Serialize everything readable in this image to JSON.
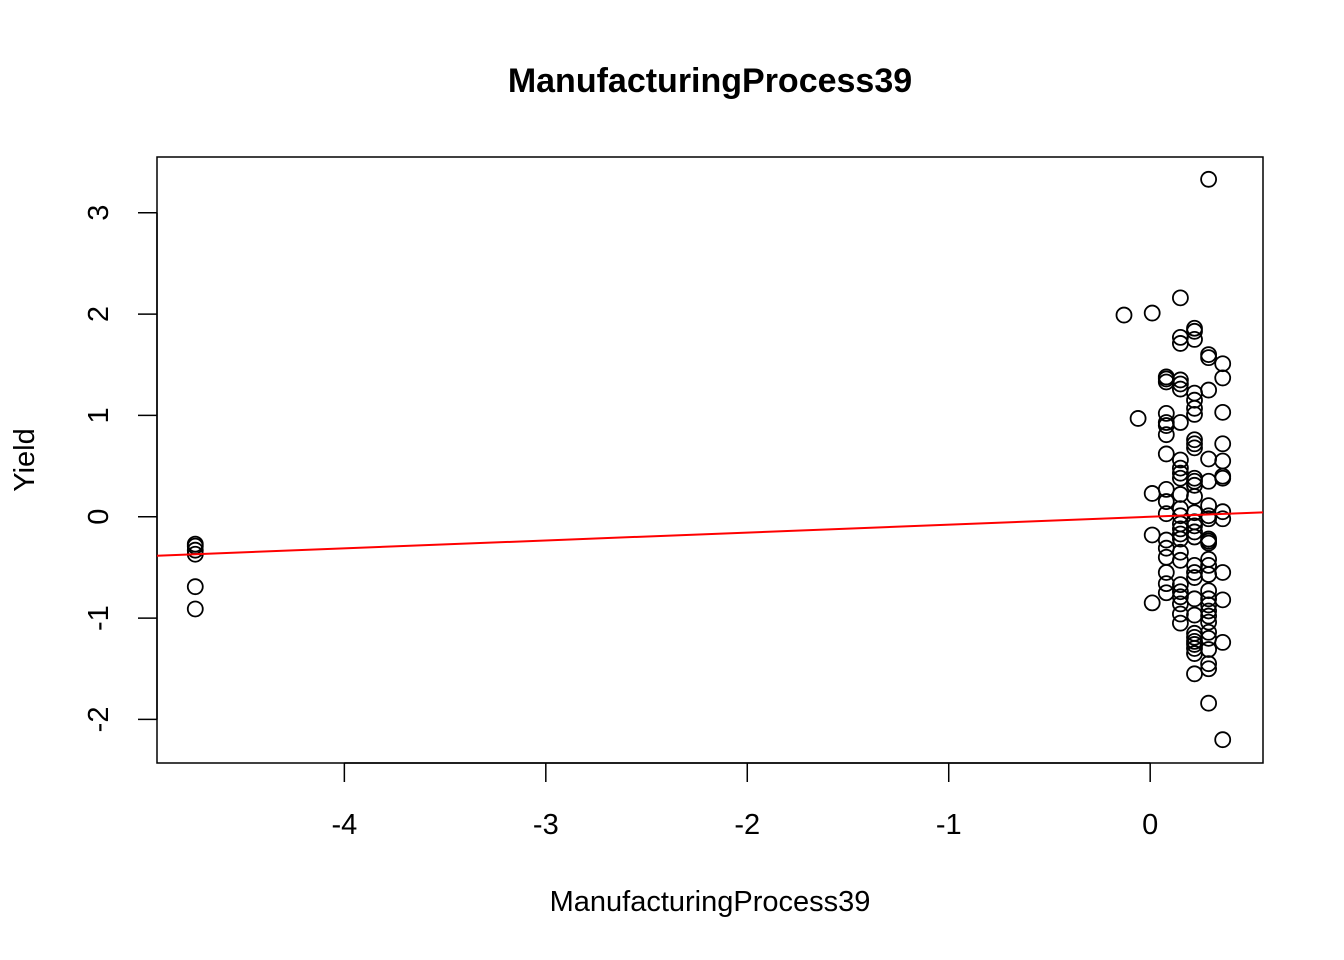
{
  "chart_data": {
    "type": "scatter",
    "title": "ManufacturingProcess39",
    "xlabel": "ManufacturingProcess39",
    "ylabel": "Yield",
    "xlim": [
      -4.93,
      0.56
    ],
    "ylim": [
      -2.43,
      3.55
    ],
    "xticks": [
      -4,
      -3,
      -2,
      -1,
      0
    ],
    "yticks": [
      -2,
      -1,
      0,
      1,
      2,
      3
    ],
    "xtick_labels": [
      "-4",
      "-3",
      "-2",
      "-1",
      "0"
    ],
    "ytick_labels": [
      "-2",
      "-1",
      "0",
      "1",
      "2",
      "3"
    ],
    "grid": false,
    "legend": "none",
    "colors": {
      "points": "#000000",
      "fit_line": "#ff0000"
    },
    "fit_line": {
      "intercept": 0.0,
      "slope": 0.078
    },
    "points": [
      [
        -4.74,
        -0.27
      ],
      [
        -4.74,
        -0.29
      ],
      [
        -4.74,
        -0.33
      ],
      [
        -4.74,
        -0.37
      ],
      [
        -4.74,
        -0.69
      ],
      [
        -4.74,
        -0.91
      ],
      [
        -0.13,
        1.99
      ],
      [
        -0.06,
        0.97
      ],
      [
        0.01,
        2.01
      ],
      [
        0.01,
        0.23
      ],
      [
        0.01,
        -0.18
      ],
      [
        0.01,
        -0.85
      ],
      [
        0.08,
        1.38
      ],
      [
        0.08,
        1.36
      ],
      [
        0.08,
        1.33
      ],
      [
        0.08,
        1.02
      ],
      [
        0.08,
        0.93
      ],
      [
        0.08,
        0.9
      ],
      [
        0.08,
        0.81
      ],
      [
        0.08,
        0.62
      ],
      [
        0.08,
        0.27
      ],
      [
        0.08,
        0.15
      ],
      [
        0.08,
        0.03
      ],
      [
        0.08,
        -0.23
      ],
      [
        0.08,
        -0.31
      ],
      [
        0.08,
        -0.4
      ],
      [
        0.08,
        -0.55
      ],
      [
        0.08,
        -0.66
      ],
      [
        0.08,
        -0.75
      ],
      [
        0.15,
        2.16
      ],
      [
        0.15,
        1.77
      ],
      [
        0.15,
        1.71
      ],
      [
        0.15,
        1.35
      ],
      [
        0.15,
        1.31
      ],
      [
        0.15,
        1.26
      ],
      [
        0.15,
        0.93
      ],
      [
        0.15,
        0.56
      ],
      [
        0.15,
        0.48
      ],
      [
        0.15,
        0.43
      ],
      [
        0.15,
        0.38
      ],
      [
        0.15,
        0.22
      ],
      [
        0.15,
        0.08
      ],
      [
        0.15,
        0.01
      ],
      [
        0.15,
        -0.07
      ],
      [
        0.15,
        -0.12
      ],
      [
        0.15,
        -0.17
      ],
      [
        0.15,
        -0.22
      ],
      [
        0.15,
        -0.35
      ],
      [
        0.15,
        -0.43
      ],
      [
        0.15,
        -0.67
      ],
      [
        0.15,
        -0.74
      ],
      [
        0.15,
        -0.79
      ],
      [
        0.15,
        -0.86
      ],
      [
        0.15,
        -0.96
      ],
      [
        0.15,
        -1.05
      ],
      [
        0.22,
        1.86
      ],
      [
        0.22,
        1.83
      ],
      [
        0.22,
        1.75
      ],
      [
        0.22,
        1.22
      ],
      [
        0.22,
        1.15
      ],
      [
        0.22,
        1.07
      ],
      [
        0.22,
        1.01
      ],
      [
        0.22,
        0.76
      ],
      [
        0.22,
        0.72
      ],
      [
        0.22,
        0.68
      ],
      [
        0.22,
        0.38
      ],
      [
        0.22,
        0.35
      ],
      [
        0.22,
        0.31
      ],
      [
        0.22,
        0.2
      ],
      [
        0.22,
        0.04
      ],
      [
        0.22,
        -0.05
      ],
      [
        0.22,
        -0.09
      ],
      [
        0.22,
        -0.15
      ],
      [
        0.22,
        -0.2
      ],
      [
        0.22,
        -0.48
      ],
      [
        0.22,
        -0.55
      ],
      [
        0.22,
        -0.6
      ],
      [
        0.22,
        -0.81
      ],
      [
        0.22,
        -0.97
      ],
      [
        0.22,
        -1.15
      ],
      [
        0.22,
        -1.19
      ],
      [
        0.22,
        -1.23
      ],
      [
        0.22,
        -1.26
      ],
      [
        0.22,
        -1.3
      ],
      [
        0.22,
        -1.35
      ],
      [
        0.22,
        -1.55
      ],
      [
        0.29,
        3.33
      ],
      [
        0.29,
        1.6
      ],
      [
        0.29,
        1.57
      ],
      [
        0.29,
        1.25
      ],
      [
        0.29,
        0.57
      ],
      [
        0.29,
        0.35
      ],
      [
        0.29,
        0.11
      ],
      [
        0.29,
        0.01
      ],
      [
        0.29,
        -0.02
      ],
      [
        0.29,
        -0.22
      ],
      [
        0.29,
        -0.24
      ],
      [
        0.29,
        -0.26
      ],
      [
        0.29,
        -0.42
      ],
      [
        0.29,
        -0.48
      ],
      [
        0.29,
        -0.57
      ],
      [
        0.29,
        -0.73
      ],
      [
        0.29,
        -0.81
      ],
      [
        0.29,
        -0.87
      ],
      [
        0.29,
        -0.93
      ],
      [
        0.29,
        -0.98
      ],
      [
        0.29,
        -1.04
      ],
      [
        0.29,
        -1.14
      ],
      [
        0.29,
        -1.2
      ],
      [
        0.29,
        -1.31
      ],
      [
        0.29,
        -1.45
      ],
      [
        0.29,
        -1.5
      ],
      [
        0.29,
        -1.84
      ],
      [
        0.36,
        1.51
      ],
      [
        0.36,
        1.37
      ],
      [
        0.36,
        1.03
      ],
      [
        0.36,
        0.72
      ],
      [
        0.36,
        0.55
      ],
      [
        0.36,
        0.4
      ],
      [
        0.36,
        0.38
      ],
      [
        0.36,
        0.05
      ],
      [
        0.36,
        -0.02
      ],
      [
        0.36,
        -0.55
      ],
      [
        0.36,
        -0.82
      ],
      [
        0.36,
        -1.24
      ],
      [
        0.36,
        -2.2
      ]
    ]
  }
}
